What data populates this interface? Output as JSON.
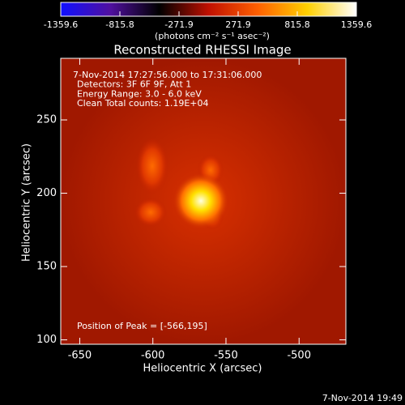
{
  "chart_data": {
    "type": "image",
    "colorbar": {
      "clim": [
        -1359.6,
        1359.6
      ],
      "ticks": [
        -1359.6,
        -815.8,
        -271.9,
        271.9,
        815.8,
        1359.6
      ],
      "label": "(photons cm⁻² s⁻¹ asec⁻²)",
      "colormap": [
        "#1010ff",
        "#5010a0",
        "#000000",
        "#c01000",
        "#ff6000",
        "#ffd000",
        "#ffffff"
      ]
    },
    "title": "Reconstructed RHESSI Image",
    "annotations": [
      "7-Nov-2014 17:27:56.000 to 17:31:06.000",
      "Detectors: 3F 6F 9F, Att 1",
      "Energy Range: 3.0 - 6.0 keV",
      "Clean     Total counts: 1.19E+04"
    ],
    "peak_label": "Position of Peak = [-566,195]",
    "xlabel": "Heliocentric X (arcsec)",
    "ylabel": "Heliocentric Y (arcsec)",
    "xlim": [
      -663,
      -468
    ],
    "xticks": [
      -650,
      -600,
      -550,
      -500
    ],
    "ylim": [
      97,
      292
    ],
    "yticks": [
      100,
      150,
      200,
      250
    ],
    "footer": "7-Nov-2014 19:49"
  }
}
